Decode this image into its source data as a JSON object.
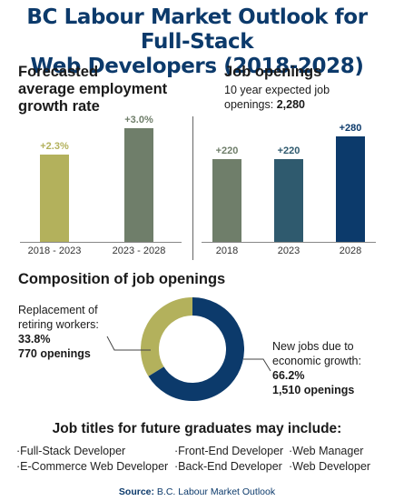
{
  "title": {
    "line1": "BC Labour Market Outlook for Full-Stack",
    "line2": "Web Developers (2018-2028)"
  },
  "colors": {
    "title": "#0c3a6b",
    "olive": "#b3b15c",
    "sage": "#6f7e6a",
    "slate": "#2f5a6e",
    "navy": "#0c3a6b"
  },
  "growth": {
    "heading": [
      "Forecasted",
      "average employment",
      "growth rate"
    ]
  },
  "openings": {
    "heading": "Job openings",
    "subtitle_line1": "10 year expected job",
    "subtitle_line2_prefix": "openings: ",
    "subtitle_total": "2,280"
  },
  "composition": {
    "heading": "Composition of job openings",
    "replacement_label_line1": "Replacement of",
    "replacement_label_line2": "retiring workers:",
    "replacement_pct": "33.8%",
    "replacement_count": "770 openings",
    "new_label_line1": "New jobs due to",
    "new_label_line2": "economic growth:",
    "new_pct": "66.2%",
    "new_count": "1,510 openings"
  },
  "jobs": {
    "heading": "Job titles for future graduates may include:",
    "titles": [
      "·Full-Stack Developer",
      "·Front-End Developer",
      "·Web Manager",
      "·E-Commerce Web Developer",
      "·Back-End Developer",
      "·Web Developer"
    ]
  },
  "source": {
    "label": "Source:",
    "text": " B.C. Labour Market Outlook"
  },
  "chart_data": [
    {
      "type": "bar",
      "categories": [
        "2018 - 2023",
        "2023 - 2028"
      ],
      "values": [
        2.3,
        3.0
      ],
      "value_labels": [
        "+2.3%",
        "+3.0%"
      ],
      "ylim": [
        0,
        3.3
      ]
    },
    {
      "type": "bar",
      "categories": [
        "2018",
        "2023",
        "2028"
      ],
      "values": [
        220,
        220,
        280
      ],
      "value_labels": [
        "+220",
        "+220",
        "+280"
      ],
      "ylim": [
        0,
        310
      ]
    },
    {
      "type": "pie",
      "labels": [
        "Replacement of retiring workers",
        "New jobs due to economic growth"
      ],
      "values": [
        33.8,
        66.2
      ],
      "counts": [
        770,
        1510
      ]
    }
  ]
}
